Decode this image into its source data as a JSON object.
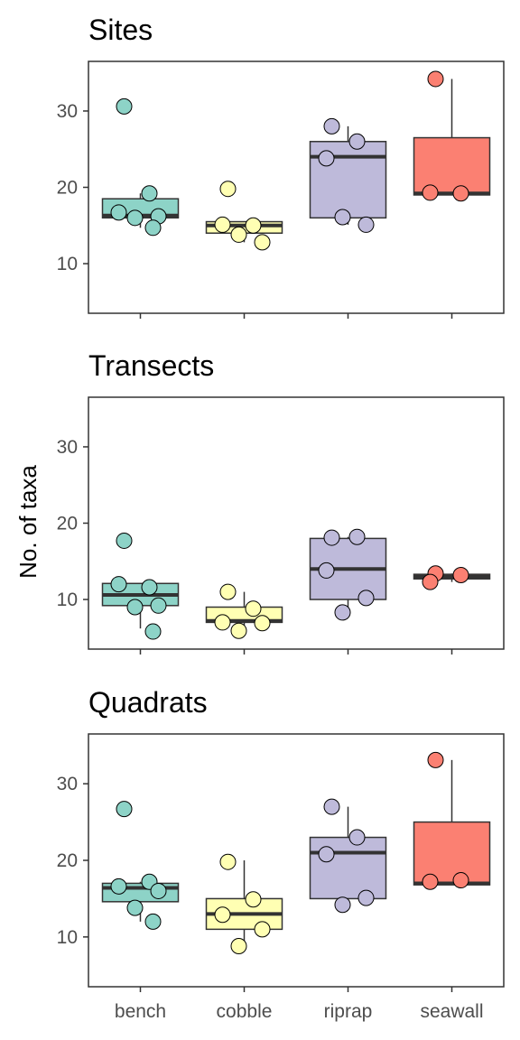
{
  "chart_data": {
    "type": "boxplot",
    "ylabel": "No. of taxa",
    "categories": [
      "bench",
      "cobble",
      "riprap",
      "seawall"
    ],
    "colors": {
      "bench": "#8dd3c7",
      "cobble": "#ffffb3",
      "riprap": "#bebada",
      "seawall": "#fb8072"
    },
    "ylim": [
      3.5,
      36.5
    ],
    "yticks": [
      "10",
      "20",
      "30"
    ],
    "panels": [
      {
        "title": "Sites",
        "groups": [
          {
            "category": "bench",
            "q1": 16,
            "median": 16.3,
            "q3": 18.5,
            "whisker_low": 14.7,
            "whisker_high": 19.2,
            "points": [
              30.6,
              19.2,
              16.7,
              16.2,
              16.0,
              14.7
            ]
          },
          {
            "category": "cobble",
            "q1": 14.0,
            "median": 15.0,
            "q3": 15.5,
            "whisker_low": 12.8,
            "whisker_high": 15.5,
            "points": [
              19.8,
              15.0,
              15.1,
              12.8,
              13.8
            ]
          },
          {
            "category": "riprap",
            "q1": 16.0,
            "median": 24.0,
            "q3": 26.0,
            "whisker_low": 15.1,
            "whisker_high": 28.0,
            "points": [
              28.0,
              26.0,
              23.8,
              15.1,
              16.1
            ]
          },
          {
            "category": "seawall",
            "q1": 19.0,
            "median": 19.2,
            "q3": 26.5,
            "whisker_low": 19.0,
            "whisker_high": 34.2,
            "points": [
              34.2,
              19.2,
              19.3
            ]
          }
        ]
      },
      {
        "title": "Transects",
        "groups": [
          {
            "category": "bench",
            "q1": 9.2,
            "median": 10.6,
            "q3": 12.1,
            "whisker_low": 6.2,
            "whisker_high": 12.1,
            "points": [
              17.7,
              11.6,
              12.0,
              9.2,
              9.0,
              5.8
            ]
          },
          {
            "category": "cobble",
            "q1": 7.0,
            "median": 7.2,
            "q3": 9.0,
            "whisker_low": 5.9,
            "whisker_high": 11.0,
            "points": [
              11.0,
              8.8,
              7.0,
              6.9,
              5.9
            ]
          },
          {
            "category": "riprap",
            "q1": 10.0,
            "median": 14.0,
            "q3": 18.0,
            "whisker_low": 8.3,
            "whisker_high": 18.2,
            "points": [
              18.1,
              18.2,
              13.8,
              10.2,
              8.3
            ]
          },
          {
            "category": "seawall",
            "q1": 12.7,
            "median": 13.0,
            "q3": 13.3,
            "whisker_low": 12.3,
            "whisker_high": 13.4,
            "points": [
              13.4,
              13.2,
              12.3
            ]
          }
        ]
      },
      {
        "title": "Quadrats",
        "groups": [
          {
            "category": "bench",
            "q1": 14.6,
            "median": 16.4,
            "q3": 17.0,
            "whisker_low": 12.0,
            "whisker_high": 17.2,
            "points": [
              26.7,
              17.2,
              16.6,
              16.0,
              13.8,
              12.0
            ]
          },
          {
            "category": "cobble",
            "q1": 11.0,
            "median": 13.0,
            "q3": 15.0,
            "whisker_low": 8.8,
            "whisker_high": 20.0,
            "points": [
              19.8,
              14.9,
              12.9,
              11.0,
              8.8
            ]
          },
          {
            "category": "riprap",
            "q1": 15.0,
            "median": 21.0,
            "q3": 23.0,
            "whisker_low": 14.2,
            "whisker_high": 27.0,
            "points": [
              27.0,
              23.0,
              20.8,
              15.1,
              14.2
            ]
          },
          {
            "category": "seawall",
            "q1": 16.8,
            "median": 17.0,
            "q3": 25.0,
            "whisker_low": 16.8,
            "whisker_high": 33.1,
            "points": [
              33.1,
              17.4,
              17.2
            ]
          }
        ]
      }
    ]
  }
}
